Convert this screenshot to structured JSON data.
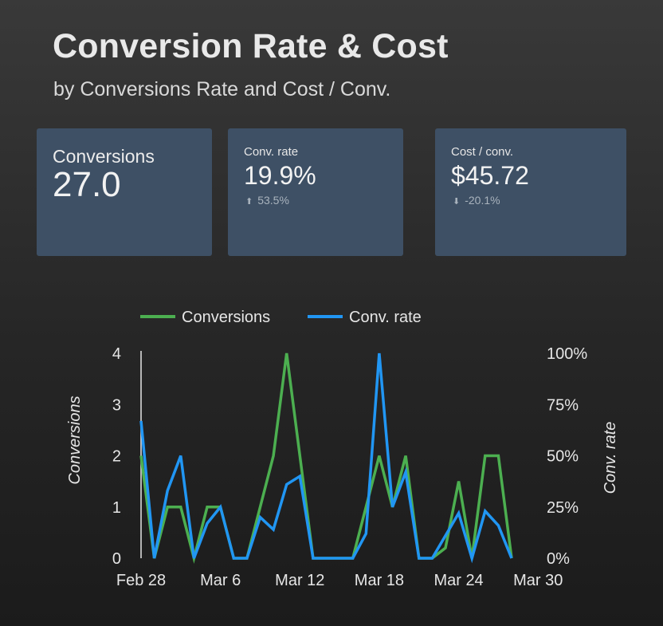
{
  "header": {
    "title": "Conversion Rate & Cost",
    "subtitle": "by Conversions Rate and Cost / Conv."
  },
  "scorecards": [
    {
      "label": "Conversions",
      "value": "27.0"
    },
    {
      "label": "Conv. rate",
      "value": "19.9%",
      "delta": "53.5%",
      "delta_direction": "up"
    },
    {
      "label": "Cost / conv.",
      "value": "$45.72",
      "delta": "-20.1%",
      "delta_direction": "down"
    }
  ],
  "colors": {
    "conversions": "#4caf50",
    "conv_rate": "#2196f3",
    "card_bg": "#3e5065"
  },
  "chart_data": {
    "type": "line",
    "x_ticks": [
      "Feb 28",
      "Mar 6",
      "Mar 12",
      "Mar 18",
      "Mar 24",
      "Mar 30"
    ],
    "x": [
      0,
      1,
      2,
      3,
      4,
      5,
      6,
      7,
      8,
      9,
      10,
      11,
      12,
      13,
      14,
      15,
      16,
      17,
      18,
      19,
      20,
      21,
      22,
      23,
      24,
      25,
      26,
      27,
      28
    ],
    "series": [
      {
        "name": "Conversions",
        "axis": "left",
        "values": [
          2,
          0,
          1,
          1,
          0,
          1,
          1,
          0,
          0,
          1,
          2,
          4,
          2,
          0,
          0,
          0,
          0,
          1,
          2,
          1,
          2,
          0,
          0,
          0.2,
          1.5,
          0,
          2,
          2,
          0
        ]
      },
      {
        "name": "Conv. rate",
        "axis": "right",
        "values": [
          67,
          0,
          33,
          50,
          0,
          17,
          25,
          0,
          0,
          20,
          14,
          36,
          40,
          0,
          0,
          0,
          0,
          12,
          100,
          25,
          42,
          0,
          0,
          11,
          22,
          0,
          23,
          16,
          0
        ]
      }
    ],
    "y_left": {
      "label": "Conversions",
      "ticks": [
        "0",
        "1",
        "2",
        "3",
        "4"
      ],
      "range": [
        0,
        4
      ]
    },
    "y_right": {
      "label": "Conv. rate",
      "ticks": [
        "0%",
        "25%",
        "50%",
        "75%",
        "100%"
      ],
      "range": [
        0,
        100
      ]
    },
    "legend": {
      "position": "top",
      "items": [
        "Conversions",
        "Conv. rate"
      ]
    },
    "grid": false
  }
}
